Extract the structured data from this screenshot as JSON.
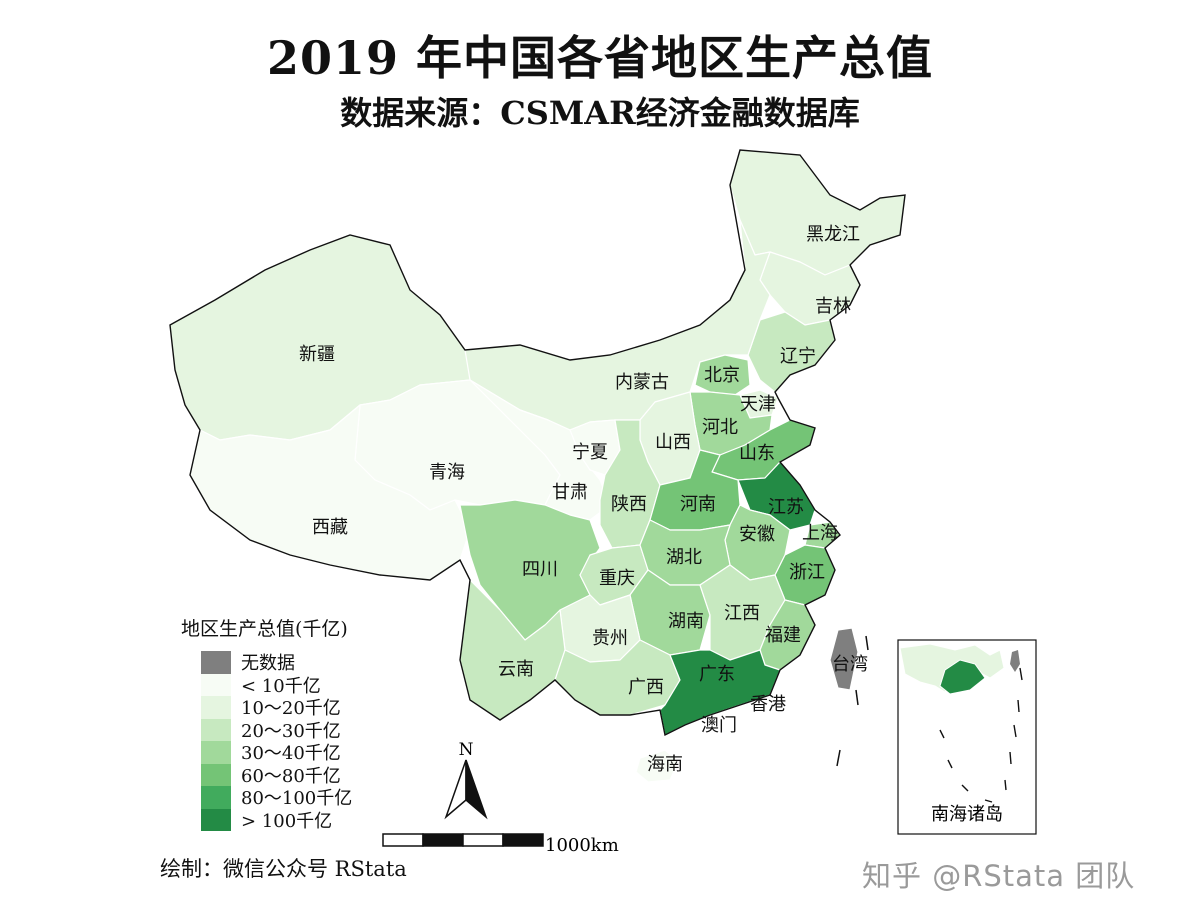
{
  "title": "2019 年中国各省地区生产总值",
  "subtitle": "数据来源：CSMAR经济金融数据库",
  "legend": {
    "title": "地区生产总值(千亿)",
    "items": [
      {
        "label": "无数据",
        "color": "#7f7f7f"
      },
      {
        "label": "< 10千亿",
        "color": "#f7fcf5"
      },
      {
        "label": "10～20千亿",
        "color": "#e5f5e0"
      },
      {
        "label": "20～30千亿",
        "color": "#c7e9c0"
      },
      {
        "label": "30～40千亿",
        "color": "#a1d99b"
      },
      {
        "label": "60～80千亿",
        "color": "#74c476"
      },
      {
        "label": "80～100千亿",
        "color": "#41ab5d"
      },
      {
        "label": "> 100千亿",
        "color": "#238b45"
      }
    ]
  },
  "provinces": [
    {
      "name": "黑龙江",
      "class": "10～20千亿"
    },
    {
      "name": "吉林",
      "class": "10～20千亿"
    },
    {
      "name": "辽宁",
      "class": "20～30千亿"
    },
    {
      "name": "内蒙古",
      "class": "10～20千亿"
    },
    {
      "name": "北京",
      "class": "30～40千亿"
    },
    {
      "name": "天津",
      "class": "10～20千亿"
    },
    {
      "name": "河北",
      "class": "30～40千亿"
    },
    {
      "name": "山西",
      "class": "10～20千亿"
    },
    {
      "name": "山东",
      "class": "60～80千亿"
    },
    {
      "name": "宁夏",
      "class": "< 10千亿"
    },
    {
      "name": "新疆",
      "class": "10～20千亿"
    },
    {
      "name": "青海",
      "class": "< 10千亿"
    },
    {
      "name": "西藏",
      "class": "< 10千亿"
    },
    {
      "name": "甘肃",
      "class": "< 10千亿"
    },
    {
      "name": "陕西",
      "class": "20～30千亿"
    },
    {
      "name": "河南",
      "class": "60～80千亿"
    },
    {
      "name": "江苏",
      "class": "> 100千亿"
    },
    {
      "name": "安徽",
      "class": "30～40千亿"
    },
    {
      "name": "上海",
      "class": "30～40千亿"
    },
    {
      "name": "四川",
      "class": "30～40千亿"
    },
    {
      "name": "重庆",
      "class": "20～30千亿"
    },
    {
      "name": "湖北",
      "class": "30～40千亿"
    },
    {
      "name": "浙江",
      "class": "60～80千亿"
    },
    {
      "name": "湖南",
      "class": "30～40千亿"
    },
    {
      "name": "江西",
      "class": "20～30千亿"
    },
    {
      "name": "福建",
      "class": "30～40千亿"
    },
    {
      "name": "贵州",
      "class": "10～20千亿"
    },
    {
      "name": "云南",
      "class": "20～30千亿"
    },
    {
      "name": "广西",
      "class": "20～30千亿"
    },
    {
      "name": "广东",
      "class": "> 100千亿"
    },
    {
      "name": "台湾",
      "class": "无数据"
    },
    {
      "name": "香港",
      "class": ""
    },
    {
      "name": "澳门",
      "class": ""
    },
    {
      "name": "海南",
      "class": "< 10千亿"
    }
  ],
  "inset_label": "南海诸岛",
  "north_label": "N",
  "scale_label": "1000km",
  "credit": "绘制：微信公众号 RStata",
  "watermark": "知乎 @RStata 团队"
}
